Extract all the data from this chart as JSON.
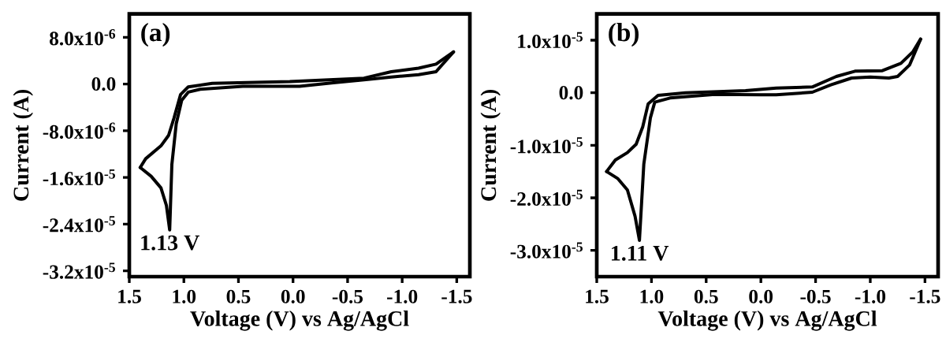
{
  "chart_data": [
    {
      "type": "line",
      "xlabel": "Voltage (V) vs Ag/AgCl",
      "ylabel": "Current (A)",
      "xlim": [
        1.5,
        -1.62
      ],
      "ylim": [
        -3.3e-05,
        1.2e-05
      ],
      "marker": "none",
      "line_style": "solid",
      "xticks": [
        {
          "value": 1.5,
          "label": "1.5"
        },
        {
          "value": 1.0,
          "label": "1.0"
        },
        {
          "value": 0.5,
          "label": "0.5"
        },
        {
          "value": 0.0,
          "label": "0.0"
        },
        {
          "value": -0.5,
          "label": "-0.5"
        },
        {
          "value": -1.0,
          "label": "-1.0"
        },
        {
          "value": -1.5,
          "label": "-1.5"
        }
      ],
      "yticks": [
        {
          "value": 8e-06,
          "label": "8.0x10$^{-6}$"
        },
        {
          "value": 0,
          "label": "0.0"
        },
        {
          "value": -8e-06,
          "label": "-8.0x10$^{-6}$"
        },
        {
          "value": -1.6e-05,
          "label": "-1.6x10$^{-5}$"
        },
        {
          "value": -2.4e-05,
          "label": "-2.4x10$^{-5}$"
        },
        {
          "value": -3.2e-05,
          "label": "-3.2x10$^{-5}$"
        }
      ],
      "series": [
        {
          "color": "#000000",
          "x": [
            -1.47,
            -1.31,
            -1.15,
            -0.9,
            -0.65,
            -0.37,
            -0.06,
            0.46,
            0.85,
            0.96,
            1.02,
            1.07,
            1.11,
            1.13,
            1.16,
            1.21,
            1.3,
            1.4
          ],
          "values": [
            5.5e-06,
            2.1e-06,
            1.6e-06,
            1.2e-06,
            7e-07,
            2e-07,
            -4e-07,
            -4e-07,
            -9e-07,
            -1.4e-06,
            -2.8e-06,
            -6.8e-06,
            -1.38e-05,
            -2.5e-05,
            -2.08e-05,
            -1.78e-05,
            -1.58e-05,
            -1.43e-05
          ]
        },
        {
          "color": "#000000",
          "x": [
            1.4,
            1.35,
            1.21,
            1.14,
            1.09,
            1.03,
            0.96,
            0.74,
            0.03,
            -0.65,
            -0.9,
            -1.15,
            -1.31,
            -1.47
          ],
          "values": [
            -1.43e-05,
            -1.28e-05,
            -1.06e-05,
            -8.8e-06,
            -5.8e-06,
            -1.8e-06,
            -5e-07,
            1e-07,
            4e-07,
            1e-06,
            2.1e-06,
            2.7e-06,
            3.4e-06,
            5.5e-06
          ]
        }
      ],
      "annotations": [
        "(a)",
        {
          "text": "1.13 V",
          "x": 1.13,
          "y": -2.5e-05
        }
      ]
    },
    {
      "type": "line",
      "xlabel": "Voltage (V) vs Ag/AgCl",
      "ylabel": "Current (A)",
      "xlim": [
        1.5,
        -1.62
      ],
      "ylim": [
        -3.5e-05,
        1.5e-05
      ],
      "marker": "none",
      "line_style": "solid",
      "xticks": [
        {
          "value": 1.5,
          "label": "1.5"
        },
        {
          "value": 1.0,
          "label": "1.0"
        },
        {
          "value": 0.5,
          "label": "0.5"
        },
        {
          "value": 0.0,
          "label": "0.0"
        },
        {
          "value": -0.5,
          "label": "-0.5"
        },
        {
          "value": -1.0,
          "label": "-1.0"
        },
        {
          "value": -1.5,
          "label": "-1.5"
        }
      ],
      "yticks": [
        {
          "value": 1e-05,
          "label": "1.0x10$^{-5}$"
        },
        {
          "value": 0,
          "label": "0.0"
        },
        {
          "value": -1e-05,
          "label": "-1.0x10$^{-5}$"
        },
        {
          "value": -2e-05,
          "label": "-2.0x10$^{-5}$"
        },
        {
          "value": -3e-05,
          "label": "-3.0x10$^{-5}$"
        }
      ],
      "series": [
        {
          "color": "#000000",
          "x": [
            -1.46,
            -1.36,
            -1.25,
            -1.17,
            -1.0,
            -0.83,
            -0.64,
            -0.47,
            -0.14,
            0.0,
            0.42,
            0.83,
            0.97,
            1.01,
            1.07,
            1.11,
            1.15,
            1.22,
            1.31,
            1.41
          ],
          "values": [
            1.02e-05,
            5.3e-06,
            3.1e-06,
            2.8e-06,
            3e-06,
            2.8e-06,
            1.5e-06,
            1e-07,
            -4e-07,
            -4e-07,
            -3e-07,
            -1e-06,
            -1.8e-06,
            -4.8e-06,
            -1.36e-05,
            -2.81e-05,
            -2.35e-05,
            -1.85e-05,
            -1.63e-05,
            -1.5e-05
          ]
        },
        {
          "color": "#000000",
          "x": [
            1.41,
            1.33,
            1.22,
            1.14,
            1.08,
            1.03,
            0.94,
            0.69,
            0.14,
            -0.14,
            -0.47,
            -0.69,
            -0.86,
            -1.11,
            -1.28,
            -1.39,
            -1.46
          ],
          "values": [
            -1.5e-05,
            -1.28e-05,
            -1.14e-05,
            -9.8e-06,
            -6.5e-06,
            -2.1e-06,
            -5e-07,
            0,
            4e-07,
            9e-07,
            1.1e-06,
            3.1e-06,
            4.1e-06,
            4.2e-06,
            5.6e-06,
            7.8e-06,
            1.02e-05
          ]
        }
      ],
      "annotations": [
        "(b)",
        {
          "text": "1.11 V",
          "x": 1.11,
          "y": -2.81e-05
        }
      ]
    }
  ]
}
